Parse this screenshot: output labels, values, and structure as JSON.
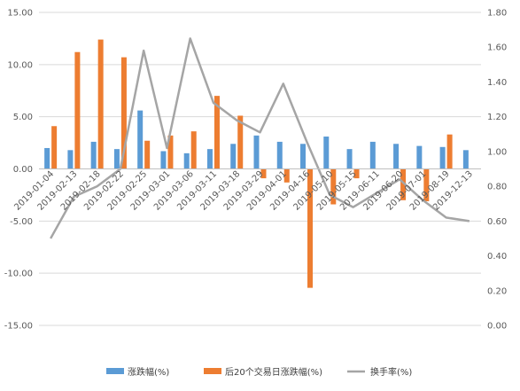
{
  "chart_data": {
    "type": "bar",
    "categories": [
      "2019-01-04",
      "2019-02-13",
      "2019-02-18",
      "2019-02-22",
      "2019-02-25",
      "2019-03-01",
      "2019-03-06",
      "2019-03-11",
      "2019-03-18",
      "2019-03-29",
      "2019-04-01",
      "2019-04-16",
      "2019-05-10",
      "2019-05-15",
      "2019-06-11",
      "2019-06-20",
      "2019-07-01",
      "2019-08-19",
      "2019-12-13"
    ],
    "series": [
      {
        "name": "涨跌幅(%)",
        "type": "bar",
        "axis": "left",
        "color": "#5B9BD5",
        "values": [
          2.0,
          1.8,
          2.6,
          1.9,
          5.6,
          1.7,
          1.5,
          1.9,
          2.4,
          3.2,
          2.6,
          2.4,
          3.1,
          1.9,
          2.6,
          2.4,
          2.2,
          2.1,
          1.8
        ]
      },
      {
        "name": "后20个交易日涨跌幅(%)",
        "type": "bar",
        "axis": "left",
        "color": "#ED7D31",
        "values": [
          4.1,
          11.2,
          12.4,
          10.7,
          2.7,
          3.2,
          3.6,
          7.0,
          5.1,
          -0.9,
          -1.3,
          -11.4,
          -3.4,
          -0.9,
          0.0,
          -3.0,
          -3.1,
          3.3,
          0.0
        ]
      },
      {
        "name": "换手率(%)",
        "type": "line",
        "axis": "right",
        "color": "#A5A5A5",
        "values": [
          0.5,
          0.74,
          0.8,
          0.9,
          1.58,
          1.02,
          1.65,
          1.28,
          1.18,
          1.11,
          1.39,
          1.06,
          0.75,
          0.68,
          0.76,
          0.84,
          0.72,
          0.62,
          0.6
        ]
      }
    ],
    "left_axis": {
      "ylim": [
        -15,
        15
      ],
      "ticks": [
        "-15.00",
        "-10.00",
        "-5.00",
        "0.00",
        "5.00",
        "10.00",
        "15.00"
      ]
    },
    "right_axis": {
      "ylim": [
        0,
        1.8
      ],
      "ticks": [
        "0.00",
        "0.20",
        "0.40",
        "0.60",
        "0.80",
        "1.00",
        "1.20",
        "1.40",
        "1.60",
        "1.80"
      ]
    },
    "grid": true,
    "legend_position": "bottom"
  }
}
